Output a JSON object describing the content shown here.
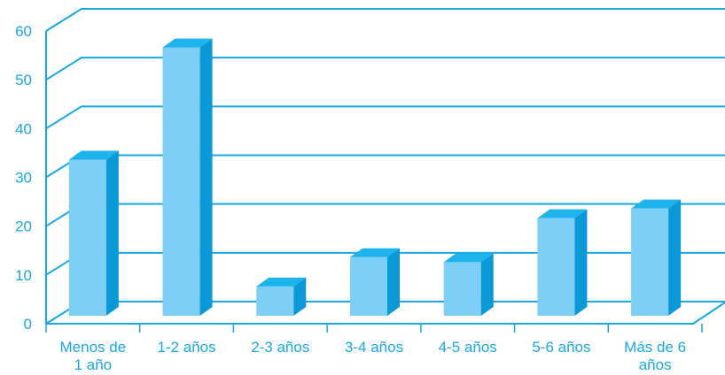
{
  "chart_data": {
    "type": "bar",
    "title": "",
    "xlabel": "",
    "ylabel": "",
    "ylim": [
      0,
      60
    ],
    "yticks": [
      0,
      10,
      20,
      30,
      40,
      50,
      60
    ],
    "grid": true,
    "categories": [
      [
        "Menos de",
        "1 año"
      ],
      [
        "1-2 años"
      ],
      [
        "2-3 años"
      ],
      [
        "3-4 años"
      ],
      [
        "4-5 años"
      ],
      [
        "5-6 años"
      ],
      [
        "Más de 6",
        "años"
      ]
    ],
    "values": [
      32,
      55,
      6,
      12,
      11,
      20,
      22
    ],
    "colors": {
      "axis": "#1aa7e6",
      "label": "#1aa7e6",
      "bar_front": "#7dcff5",
      "bar_top": "#1fb3ee",
      "bar_side": "#0a99d6"
    }
  }
}
